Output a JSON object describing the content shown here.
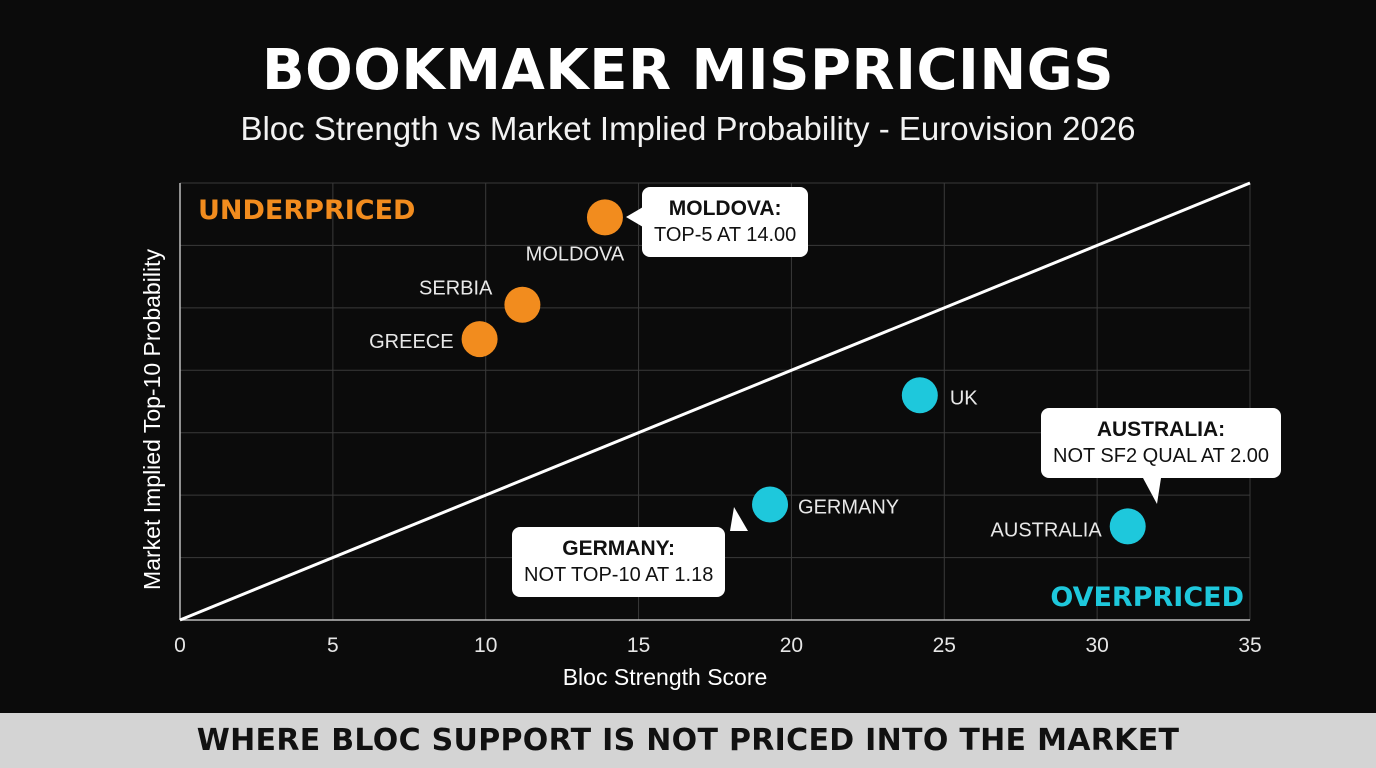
{
  "title": "BOOKMAKER MISPRICINGS",
  "subtitle": "Bloc Strength vs Market Implied Probability - Eurovision 2026",
  "footer": "WHERE BLOC SUPPORT IS NOT PRICED INTO THE MARKET",
  "colors": {
    "underpriced": "#f28c1e",
    "overpriced": "#1ec8dc",
    "background": "#0b0b0b",
    "grid": "#3a3a3a"
  },
  "chart_data": {
    "type": "scatter",
    "xlabel": "Bloc Strength Score",
    "ylabel": "Market Implied Top-10 Probability",
    "xlim": [
      0,
      35
    ],
    "ylim": [
      0,
      7
    ],
    "xticks": [
      "0",
      "5",
      "10",
      "15",
      "20",
      "25",
      "30",
      "35"
    ],
    "grid": true,
    "reference_line": {
      "x": [
        0,
        35
      ],
      "y": [
        0,
        7
      ]
    },
    "zone_labels": {
      "upper_left": "UNDERPRICED",
      "lower_right": "OVERPRICED"
    },
    "series": [
      {
        "group": "underpriced",
        "points": [
          {
            "label": "MOLDOVA",
            "x": 13.9,
            "y": 6.45
          },
          {
            "label": "SERBIA",
            "x": 11.2,
            "y": 5.05
          },
          {
            "label": "GREECE",
            "x": 9.8,
            "y": 4.5
          }
        ]
      },
      {
        "group": "overpriced",
        "points": [
          {
            "label": "UK",
            "x": 24.2,
            "y": 3.6
          },
          {
            "label": "GERMANY",
            "x": 19.3,
            "y": 1.85
          },
          {
            "label": "AUSTRALIA",
            "x": 31.0,
            "y": 1.5
          }
        ]
      }
    ],
    "annotations": [
      {
        "head": "MOLDOVA:",
        "text": "TOP-5 AT 14.00"
      },
      {
        "head": "AUSTRALIA:",
        "text": "NOT SF2 QUAL AT 2.00"
      },
      {
        "head": "GERMANY:",
        "text": "NOT TOP-10 AT 1.18"
      }
    ]
  }
}
